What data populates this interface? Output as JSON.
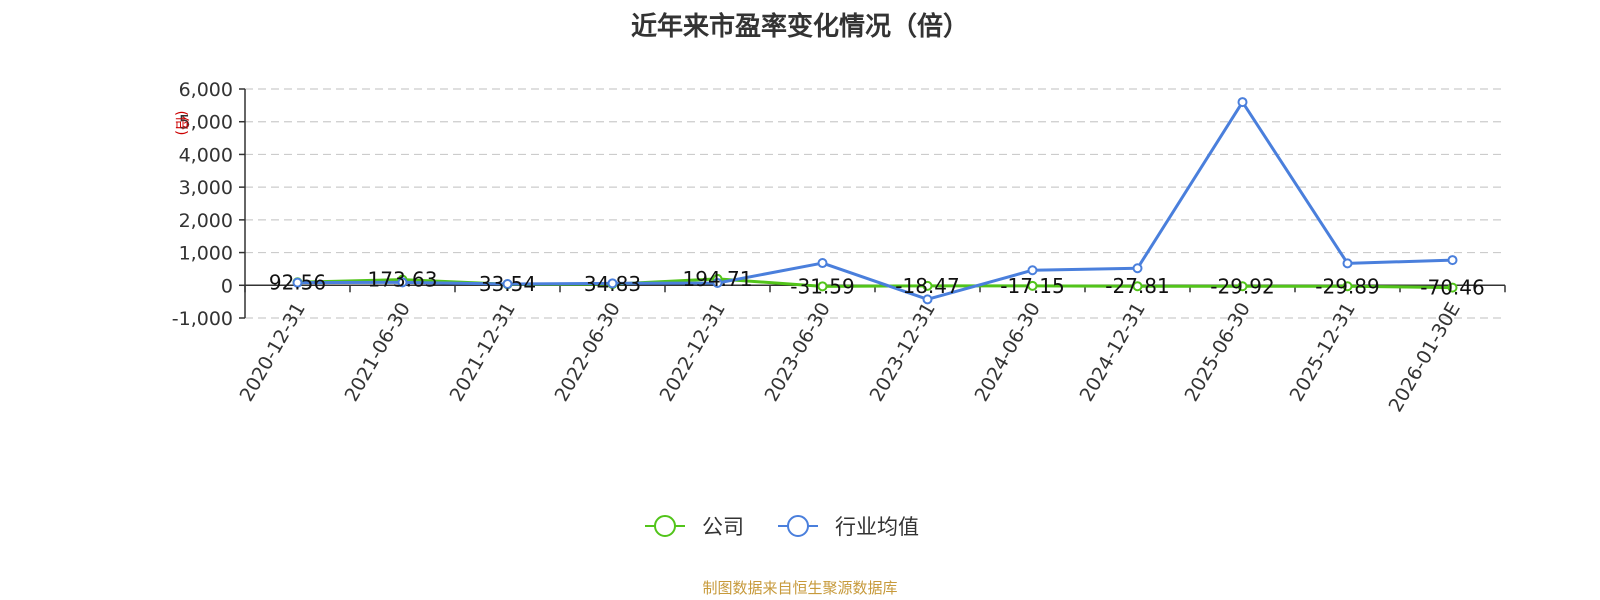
{
  "chart_data": {
    "type": "line",
    "title": "近年来市盈率变化情况（倍）",
    "ylabel": "(倍)",
    "categories": [
      "2020-12-31",
      "2021-06-30",
      "2021-12-31",
      "2022-06-30",
      "2022-12-31",
      "2023-06-30",
      "2023-12-31",
      "2024-06-30",
      "2024-12-31",
      "2025-06-30",
      "2025-12-31",
      "2026-01-30E"
    ],
    "yticks": [
      -1000,
      0,
      1000,
      2000,
      3000,
      4000,
      5000,
      6000
    ],
    "ytick_labels": [
      "-1,000",
      "0",
      "1,000",
      "2,000",
      "3,000",
      "4,000",
      "5,000",
      "6,000"
    ],
    "ylim": [
      -1000,
      6000
    ],
    "grid": true,
    "legend_position": "bottom",
    "series": [
      {
        "name": "公司",
        "color": "#52c41a",
        "values": [
          92.56,
          173.63,
          33.54,
          34.83,
          194.71,
          -31.59,
          -18.47,
          -17.15,
          -27.81,
          -29.92,
          -29.89,
          -70.46
        ],
        "labels": [
          "92.56",
          "173.63",
          "33.54",
          "34.83",
          "194.71",
          "-31.59",
          "-18.47",
          "-17.15",
          "-27.81",
          "-29.92",
          "-29.89",
          "-70.46"
        ]
      },
      {
        "name": "行业均值",
        "color": "#4a7fdc",
        "values": [
          80,
          90,
          40,
          60,
          70,
          680,
          -430,
          460,
          520,
          5600,
          670,
          770
        ]
      }
    ]
  },
  "source": "制图数据来自恒生聚源数据库"
}
